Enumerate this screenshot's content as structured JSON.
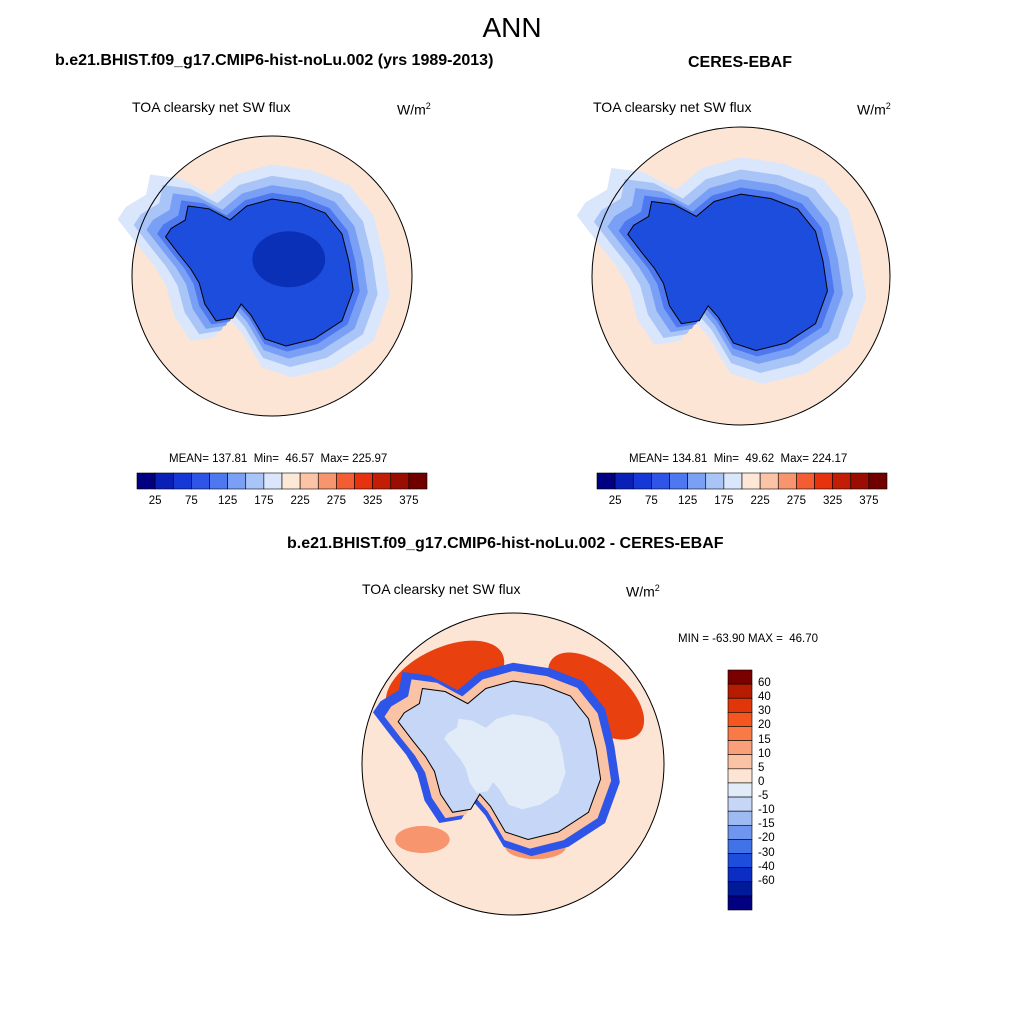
{
  "page_title": "ANN",
  "panels": [
    {
      "title": "b.e21.BHIST.f09_g17.CMIP6-hist-noLu.002 (yrs 1989-2013)",
      "variable": "TOA clearsky net SW flux",
      "units_base": "W/m",
      "units_exp": "2",
      "stats": "MEAN= 137.81  Min=  46.57  Max= 225.97"
    },
    {
      "title": "CERES-EBAF",
      "variable": "TOA clearsky net SW flux",
      "units_base": "W/m",
      "units_exp": "2",
      "stats": "MEAN= 134.81  Min=  49.62  Max= 224.17"
    }
  ],
  "abs_colorbar": {
    "ticks": [
      "25",
      "75",
      "125",
      "175",
      "225",
      "275",
      "325",
      "375"
    ],
    "colors": [
      "#000080",
      "#0a1fb8",
      "#1638d6",
      "#2f55e8",
      "#4e78f0",
      "#7aa0f5",
      "#a9c5f8",
      "#d9e6fb",
      "#fde8d8",
      "#fbc4a6",
      "#f7956e",
      "#f25d33",
      "#e6320e",
      "#c21d05",
      "#9a0d00",
      "#700000"
    ]
  },
  "diff_panel": {
    "title": "b.e21.BHIST.f09_g17.CMIP6-hist-noLu.002 - CERES-EBAF",
    "variable": "TOA clearsky net SW flux",
    "units_base": "W/m",
    "units_exp": "2",
    "stats": "MIN = -63.90 MAX =  46.70"
  },
  "diff_colorbar": {
    "ticks": [
      "60",
      "40",
      "30",
      "20",
      "15",
      "10",
      "5",
      "0",
      "-5",
      "-10",
      "-15",
      "-20",
      "-30",
      "-40",
      "-60"
    ],
    "colors": [
      "#7a0000",
      "#b81c00",
      "#e0360a",
      "#f5551f",
      "#f77a47",
      "#f9a07a",
      "#fbc3a6",
      "#fde5d6",
      "#e2ecf8",
      "#c5d6f6",
      "#9dbaf2",
      "#6f96ee",
      "#4272e8",
      "#1d4ddd",
      "#0b2dc4",
      "#011a9a",
      "#000080"
    ]
  },
  "map_colors": {
    "ocean_far": "#fde5d6",
    "ring1": "#d9e6fb",
    "ring2": "#a9c5f8",
    "ring3": "#7aa0f5",
    "ring4": "#4e78f0",
    "ice": "#1d4ddd",
    "ice_center": "#0b30b8",
    "diff_red": "#e8400f",
    "diff_red_light": "#f7956e",
    "diff_blue": "#2f55e8"
  }
}
